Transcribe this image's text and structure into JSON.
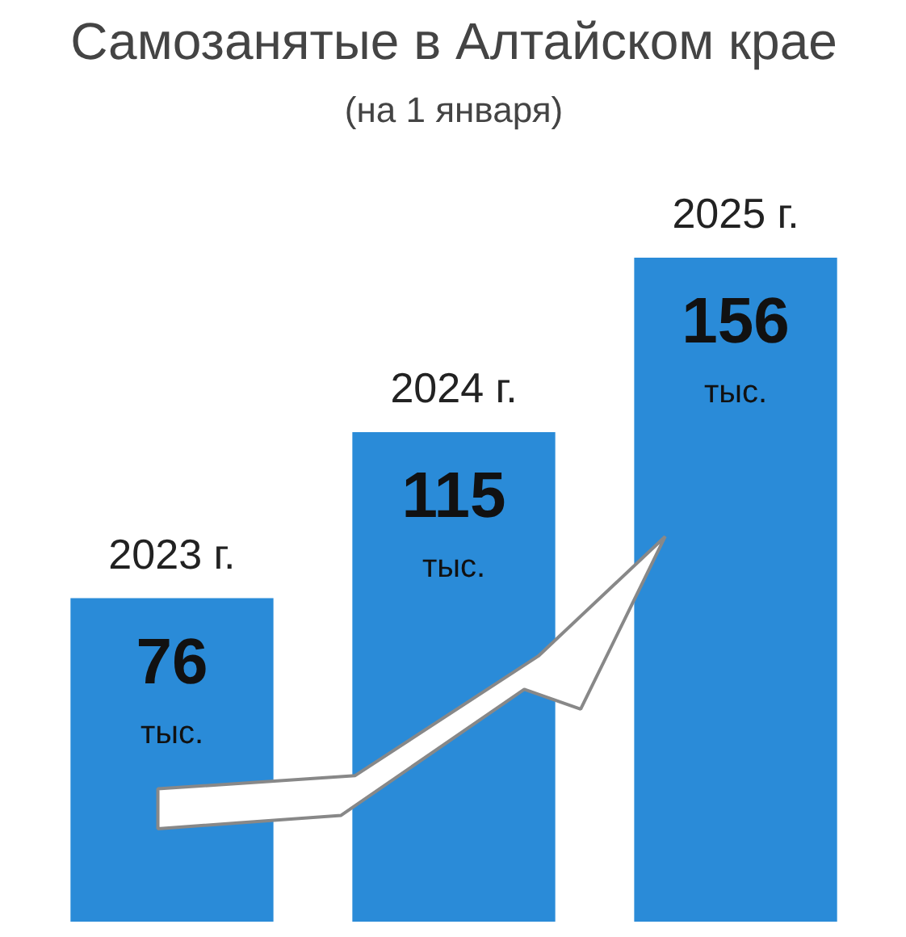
{
  "chart_data": {
    "type": "bar",
    "title": "Самозанятые в Алтайском крае",
    "subtitle": "(на 1 января)",
    "categories": [
      "2023 г.",
      "2024 г.",
      "2025 г."
    ],
    "values": [
      76,
      115,
      156
    ],
    "color": "#2a8bd8",
    "value_labels": [
      "76\nтыс.",
      "115\nтыс.",
      "156\nтыс."
    ]
  }
}
